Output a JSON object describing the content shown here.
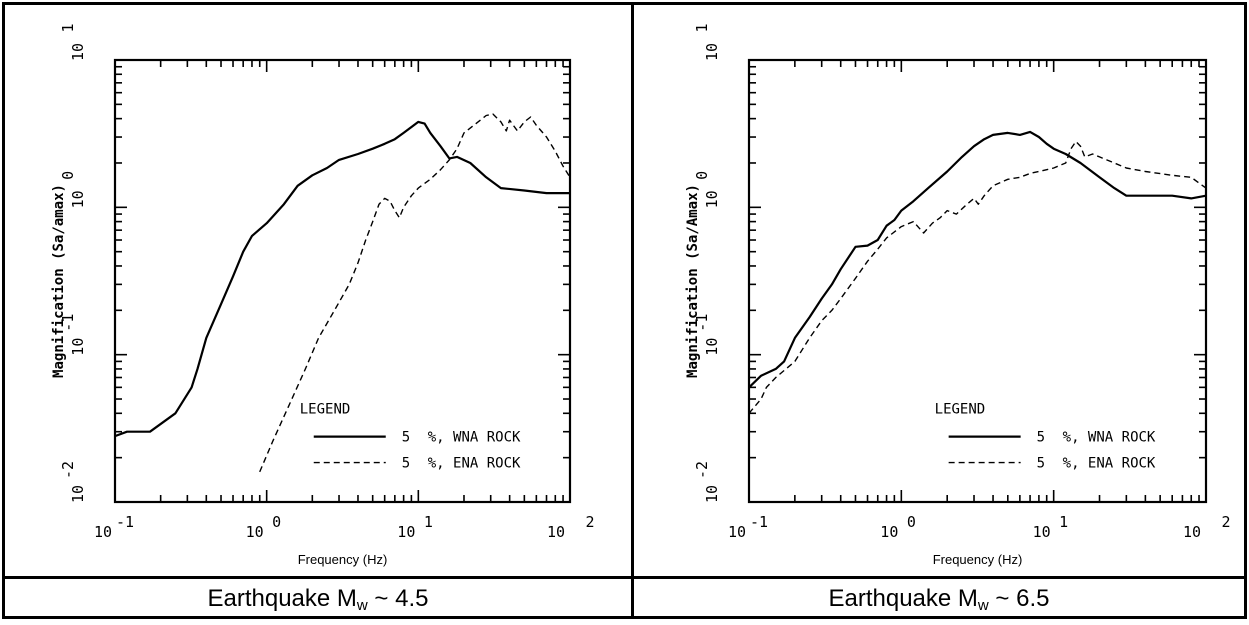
{
  "chart_data": [
    {
      "type": "line",
      "caption_text": "Earthquake M",
      "caption_sub": "w",
      "caption_tail": " ~ 4.5",
      "ylabel": "Magnification (Sa/amax)",
      "xlabel": "Frequency (Hz)",
      "x_scale": "log",
      "y_scale": "log",
      "xlim": [
        0.1,
        100
      ],
      "ylim": [
        0.01,
        10
      ],
      "x_ticks": [
        {
          "value": 0.1,
          "base": "10",
          "exp": "-1"
        },
        {
          "value": 1,
          "base": "10",
          "exp": "0"
        },
        {
          "value": 10,
          "base": "10",
          "exp": "1"
        },
        {
          "value": 100,
          "base": "10",
          "exp": "2"
        }
      ],
      "y_ticks": [
        {
          "value": 0.01,
          "base": "10",
          "exp": "-2"
        },
        {
          "value": 0.1,
          "base": "10",
          "exp": "-1"
        },
        {
          "value": 1,
          "base": "10",
          "exp": "0"
        },
        {
          "value": 10,
          "base": "10",
          "exp": "1"
        }
      ],
      "legend_title": "LEGEND",
      "legend_position": "bottom-right",
      "series": [
        {
          "name": "5 %, WNA ROCK",
          "legend_pct": "5",
          "legend_text": "%, WNA ROCK",
          "style": "solid",
          "points": [
            [
              0.1,
              0.028
            ],
            [
              0.12,
              0.03
            ],
            [
              0.17,
              0.03
            ],
            [
              0.25,
              0.04
            ],
            [
              0.32,
              0.06
            ],
            [
              0.35,
              0.08
            ],
            [
              0.4,
              0.13
            ],
            [
              0.5,
              0.22
            ],
            [
              0.6,
              0.34
            ],
            [
              0.7,
              0.5
            ],
            [
              0.8,
              0.64
            ],
            [
              1.0,
              0.78
            ],
            [
              1.3,
              1.05
            ],
            [
              1.6,
              1.4
            ],
            [
              2.0,
              1.65
            ],
            [
              2.5,
              1.85
            ],
            [
              3.0,
              2.1
            ],
            [
              4.0,
              2.3
            ],
            [
              5.0,
              2.5
            ],
            [
              6.0,
              2.7
            ],
            [
              7.0,
              2.9
            ],
            [
              8.0,
              3.2
            ],
            [
              10.0,
              3.8
            ],
            [
              11.0,
              3.7
            ],
            [
              12.0,
              3.2
            ],
            [
              14.0,
              2.6
            ],
            [
              16.0,
              2.15
            ],
            [
              18.0,
              2.2
            ],
            [
              22.0,
              2.0
            ],
            [
              28.0,
              1.6
            ],
            [
              35.0,
              1.35
            ],
            [
              50.0,
              1.3
            ],
            [
              70.0,
              1.25
            ],
            [
              100.0,
              1.25
            ]
          ]
        },
        {
          "name": "5 %, ENA ROCK",
          "legend_pct": "5",
          "legend_text": "%, ENA ROCK",
          "style": "dashed",
          "points": [
            [
              0.9,
              0.016
            ],
            [
              1.1,
              0.026
            ],
            [
              1.4,
              0.045
            ],
            [
              1.8,
              0.08
            ],
            [
              2.2,
              0.13
            ],
            [
              2.8,
              0.2
            ],
            [
              3.5,
              0.3
            ],
            [
              4.0,
              0.42
            ],
            [
              4.5,
              0.6
            ],
            [
              5.0,
              0.8
            ],
            [
              5.5,
              1.05
            ],
            [
              6.0,
              1.15
            ],
            [
              6.5,
              1.1
            ],
            [
              7.0,
              0.95
            ],
            [
              7.5,
              0.85
            ],
            [
              8.0,
              1.0
            ],
            [
              9.0,
              1.2
            ],
            [
              10.0,
              1.35
            ],
            [
              12.0,
              1.55
            ],
            [
              14.0,
              1.8
            ],
            [
              16.0,
              2.1
            ],
            [
              18.0,
              2.5
            ],
            [
              20.0,
              3.2
            ],
            [
              24.0,
              3.7
            ],
            [
              28.0,
              4.2
            ],
            [
              31.0,
              4.3
            ],
            [
              35.0,
              3.8
            ],
            [
              38.0,
              3.3
            ],
            [
              40.0,
              3.9
            ],
            [
              45.0,
              3.3
            ],
            [
              50.0,
              3.8
            ],
            [
              55.0,
              4.1
            ],
            [
              60.0,
              3.6
            ],
            [
              70.0,
              3.0
            ],
            [
              80.0,
              2.4
            ],
            [
              90.0,
              1.9
            ],
            [
              100.0,
              1.6
            ]
          ]
        }
      ]
    },
    {
      "type": "line",
      "caption_text": "Earthquake M",
      "caption_sub": "w",
      "caption_tail": " ~ 6.5",
      "ylabel": "Magnification (Sa/Amax)",
      "xlabel": "Frequency (Hz)",
      "x_scale": "log",
      "y_scale": "log",
      "xlim": [
        0.1,
        100
      ],
      "ylim": [
        0.01,
        10
      ],
      "x_ticks": [
        {
          "value": 0.1,
          "base": "10",
          "exp": "-1"
        },
        {
          "value": 1,
          "base": "10",
          "exp": "0"
        },
        {
          "value": 10,
          "base": "10",
          "exp": "1"
        },
        {
          "value": 100,
          "base": "10",
          "exp": "2"
        }
      ],
      "y_ticks": [
        {
          "value": 0.01,
          "base": "10",
          "exp": "-2"
        },
        {
          "value": 0.1,
          "base": "10",
          "exp": "-1"
        },
        {
          "value": 1,
          "base": "10",
          "exp": "0"
        },
        {
          "value": 10,
          "base": "10",
          "exp": "1"
        }
      ],
      "legend_title": "LEGEND",
      "legend_position": "bottom-right",
      "series": [
        {
          "name": "5 %, WNA ROCK",
          "legend_pct": "5",
          "legend_text": "%, WNA ROCK",
          "style": "solid",
          "points": [
            [
              0.1,
              0.06
            ],
            [
              0.12,
              0.072
            ],
            [
              0.15,
              0.08
            ],
            [
              0.17,
              0.09
            ],
            [
              0.2,
              0.13
            ],
            [
              0.25,
              0.18
            ],
            [
              0.3,
              0.24
            ],
            [
              0.35,
              0.3
            ],
            [
              0.4,
              0.38
            ],
            [
              0.5,
              0.54
            ],
            [
              0.6,
              0.55
            ],
            [
              0.7,
              0.6
            ],
            [
              0.8,
              0.75
            ],
            [
              0.9,
              0.82
            ],
            [
              1.0,
              0.95
            ],
            [
              1.2,
              1.1
            ],
            [
              1.5,
              1.35
            ],
            [
              2.0,
              1.75
            ],
            [
              2.5,
              2.2
            ],
            [
              3.0,
              2.6
            ],
            [
              3.5,
              2.9
            ],
            [
              4.0,
              3.1
            ],
            [
              5.0,
              3.2
            ],
            [
              6.0,
              3.1
            ],
            [
              7.0,
              3.25
            ],
            [
              8.0,
              3.0
            ],
            [
              9.0,
              2.7
            ],
            [
              10.0,
              2.5
            ],
            [
              12.0,
              2.3
            ],
            [
              15.0,
              2.0
            ],
            [
              20.0,
              1.6
            ],
            [
              25.0,
              1.35
            ],
            [
              30.0,
              1.2
            ],
            [
              40.0,
              1.2
            ],
            [
              60.0,
              1.2
            ],
            [
              80.0,
              1.15
            ],
            [
              100.0,
              1.2
            ]
          ]
        },
        {
          "name": "5 %, ENA ROCK",
          "legend_pct": "5",
          "legend_text": "%, ENA ROCK",
          "style": "dashed",
          "points": [
            [
              0.1,
              0.04
            ],
            [
              0.12,
              0.05
            ],
            [
              0.13,
              0.06
            ],
            [
              0.15,
              0.07
            ],
            [
              0.2,
              0.09
            ],
            [
              0.25,
              0.13
            ],
            [
              0.3,
              0.17
            ],
            [
              0.35,
              0.2
            ],
            [
              0.4,
              0.24
            ],
            [
              0.5,
              0.33
            ],
            [
              0.6,
              0.43
            ],
            [
              0.7,
              0.52
            ],
            [
              0.8,
              0.62
            ],
            [
              1.0,
              0.74
            ],
            [
              1.2,
              0.8
            ],
            [
              1.4,
              0.67
            ],
            [
              1.6,
              0.78
            ],
            [
              1.8,
              0.85
            ],
            [
              2.0,
              0.95
            ],
            [
              2.3,
              0.9
            ],
            [
              2.7,
              1.05
            ],
            [
              3.0,
              1.15
            ],
            [
              3.2,
              1.05
            ],
            [
              3.5,
              1.2
            ],
            [
              4.0,
              1.4
            ],
            [
              5.0,
              1.55
            ],
            [
              6.0,
              1.6
            ],
            [
              7.0,
              1.7
            ],
            [
              8.0,
              1.75
            ],
            [
              9.0,
              1.8
            ],
            [
              10.0,
              1.85
            ],
            [
              12.0,
              2.0
            ],
            [
              13.0,
              2.5
            ],
            [
              14.0,
              2.8
            ],
            [
              15.0,
              2.6
            ],
            [
              16.0,
              2.2
            ],
            [
              18.0,
              2.3
            ],
            [
              20.0,
              2.2
            ],
            [
              25.0,
              2.0
            ],
            [
              30.0,
              1.85
            ],
            [
              40.0,
              1.75
            ],
            [
              60.0,
              1.65
            ],
            [
              80.0,
              1.6
            ],
            [
              100.0,
              1.35
            ]
          ]
        }
      ]
    }
  ]
}
